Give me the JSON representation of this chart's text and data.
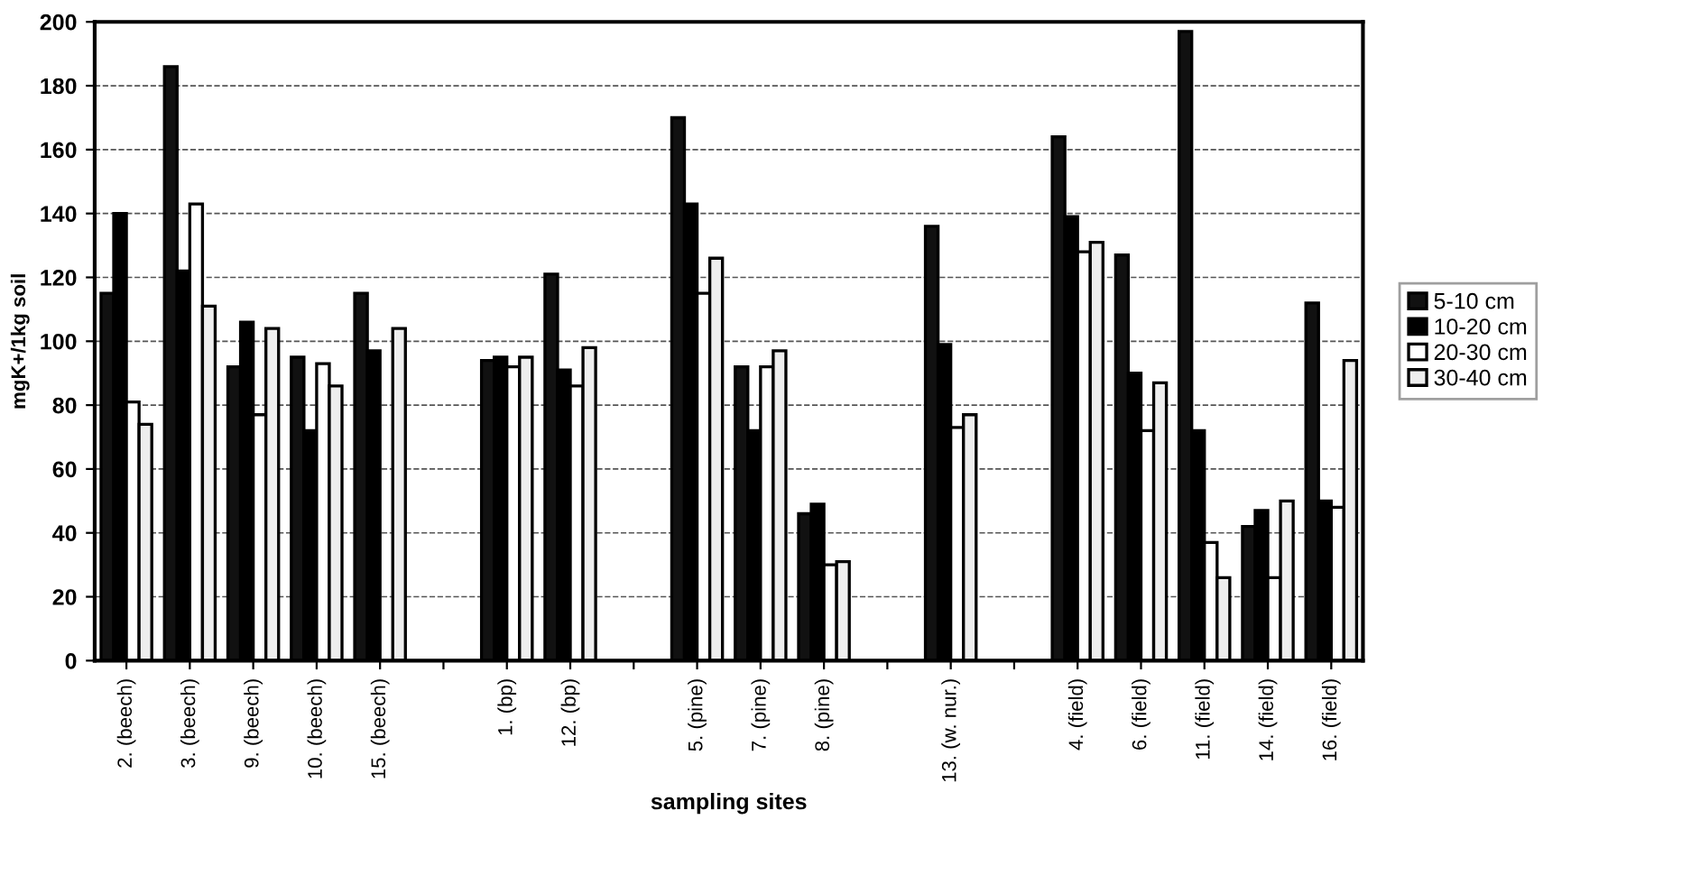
{
  "chart_data": {
    "type": "bar",
    "xlabel": "sampling sites",
    "ylabel": "mgK+/1kg soil",
    "categories": [
      "2. (beech)",
      "3. (beech)",
      "9. (beech)",
      "10. (beech)",
      "15. (beech)",
      null,
      "1. (bp)",
      "12. (bp)",
      null,
      "5. (pine)",
      "7. (pine)",
      "8. (pine)",
      null,
      "13. (w. nur.)",
      null,
      "4. (field)",
      "6. (field)",
      "11. (field)",
      "14. (field)",
      "16. (field)"
    ],
    "series": [
      {
        "name": "5-10 cm",
        "color": "#111111",
        "values": [
          115,
          186,
          92,
          95,
          115,
          null,
          94,
          121,
          null,
          170,
          92,
          46,
          null,
          136,
          null,
          164,
          127,
          197,
          42,
          112
        ]
      },
      {
        "name": "10-20 cm",
        "color": "#000000",
        "values": [
          140,
          122,
          106,
          72,
          97,
          null,
          95,
          91,
          null,
          143,
          72,
          49,
          null,
          99,
          null,
          139,
          90,
          72,
          47,
          50
        ]
      },
      {
        "name": "20-30 cm",
        "color": "#ffffff",
        "values": [
          81,
          143,
          77,
          93,
          null,
          null,
          92,
          86,
          null,
          115,
          92,
          30,
          null,
          73,
          null,
          128,
          72,
          37,
          26,
          48
        ]
      },
      {
        "name": "30-40 cm",
        "color": "#eeeeee",
        "values": [
          74,
          111,
          104,
          86,
          104,
          null,
          95,
          98,
          null,
          126,
          97,
          31,
          null,
          77,
          null,
          131,
          87,
          26,
          50,
          94
        ]
      }
    ],
    "ylim": [
      0,
      200
    ],
    "yticks": [
      0,
      20,
      40,
      60,
      80,
      100,
      120,
      140,
      160,
      180,
      200
    ],
    "grid": "y",
    "legend": "right"
  }
}
